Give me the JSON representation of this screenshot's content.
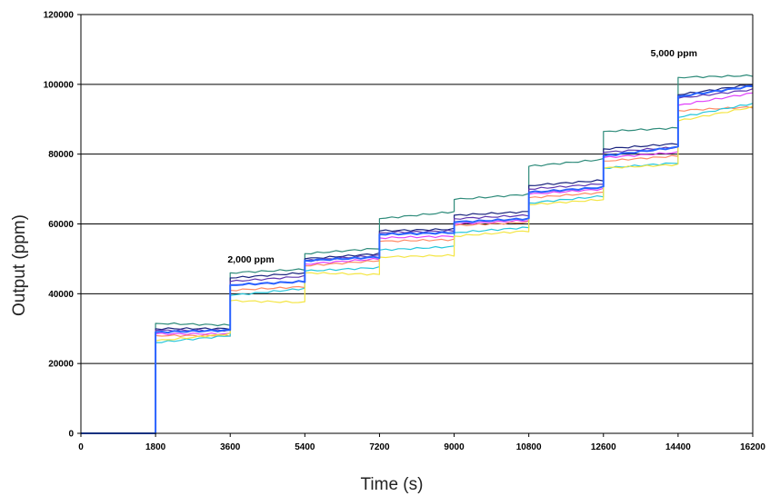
{
  "chart_data": {
    "type": "line",
    "title": "",
    "xlabel": "Time (s)",
    "ylabel": "Output (ppm)",
    "xlim": [
      0,
      16200
    ],
    "ylim": [
      0,
      120000
    ],
    "x_ticks": [
      0,
      1800,
      3600,
      5400,
      7200,
      9000,
      10800,
      12600,
      14400,
      16200
    ],
    "y_ticks": [
      0,
      20000,
      40000,
      60000,
      80000,
      100000,
      120000
    ],
    "grid": "horizontal",
    "legend": "none",
    "annotations": [
      {
        "text": "2,000 ppm",
        "x": 4100,
        "y": 49000
      },
      {
        "text": "5,000 ppm",
        "x": 14300,
        "y": 108000
      }
    ],
    "step_times": [
      1800,
      3600,
      5400,
      7200,
      9000,
      10800,
      12600,
      14400
    ],
    "series": [
      {
        "color": "#2e8b7a",
        "values": [
          0,
          31500,
          46000,
          51500,
          61500,
          67000,
          76500,
          86500,
          102000
        ],
        "end_values": [
          0,
          31000,
          47000,
          53000,
          63500,
          68500,
          78500,
          87500,
          102500
        ]
      },
      {
        "color": "#1a237e",
        "values": [
          0,
          30000,
          44500,
          50000,
          58000,
          62500,
          71000,
          81500,
          97000
        ],
        "end_values": [
          0,
          30000,
          46000,
          51500,
          58500,
          63500,
          72500,
          83000,
          100000
        ]
      },
      {
        "color": "#5e35b1",
        "values": [
          0,
          29500,
          43500,
          49500,
          57500,
          61500,
          70000,
          80500,
          96000
        ],
        "end_values": [
          0,
          29500,
          45000,
          51000,
          58000,
          62500,
          71500,
          82000,
          98500
        ]
      },
      {
        "color": "#e040fb",
        "values": [
          0,
          28500,
          42500,
          48500,
          56000,
          60000,
          68500,
          79000,
          94000
        ],
        "end_values": [
          0,
          28500,
          43500,
          50000,
          56500,
          61000,
          70000,
          80500,
          97500
        ]
      },
      {
        "color": "#ff8a65",
        "values": [
          0,
          28000,
          41000,
          48000,
          55000,
          59500,
          67500,
          78000,
          92500
        ],
        "end_values": [
          0,
          28000,
          42000,
          49500,
          55500,
          60500,
          69000,
          79500,
          93500
        ]
      },
      {
        "color": "#26c6da",
        "values": [
          0,
          26000,
          39500,
          46500,
          52500,
          57500,
          66000,
          76000,
          90500
        ],
        "end_values": [
          0,
          28000,
          41500,
          47500,
          53500,
          59000,
          68000,
          77500,
          94500
        ]
      },
      {
        "color": "#f4e542",
        "values": [
          0,
          26500,
          38000,
          46000,
          50500,
          56500,
          65500,
          76000,
          89500
        ],
        "end_values": [
          0,
          28500,
          37500,
          45500,
          51000,
          58000,
          67000,
          77000,
          93500
        ]
      },
      {
        "color": "#2962ff",
        "values": [
          0,
          29000,
          42500,
          49500,
          57000,
          60500,
          69000,
          79500,
          96500
        ],
        "end_values": [
          0,
          29500,
          43500,
          50500,
          57500,
          61500,
          70500,
          82000,
          99500
        ]
      }
    ]
  }
}
